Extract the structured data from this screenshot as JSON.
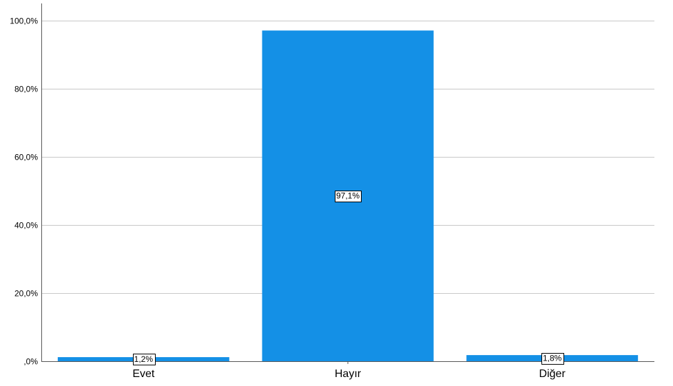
{
  "chart_data": {
    "type": "bar",
    "title": "",
    "xlabel": "",
    "ylabel": "",
    "categories": [
      "Evet",
      "Hayır",
      "Diğer"
    ],
    "values": [
      1.2,
      97.1,
      1.8
    ],
    "data_labels": [
      "1,2%",
      "97,1%",
      "1,8%"
    ],
    "ylim": [
      0,
      100
    ],
    "yticks": [
      0,
      20,
      40,
      60,
      80,
      100
    ],
    "ytick_labels": [
      ",0%",
      "20,0%",
      "40,0%",
      "60,0%",
      "80,0%",
      "100,0%"
    ],
    "grid": true,
    "legend": "none",
    "colors": {
      "bar": "#1490e6",
      "grid": "#c8c8c8",
      "axis": "#555555",
      "label_box_border": "#000000",
      "label_box_fill": "#ffffff"
    }
  }
}
